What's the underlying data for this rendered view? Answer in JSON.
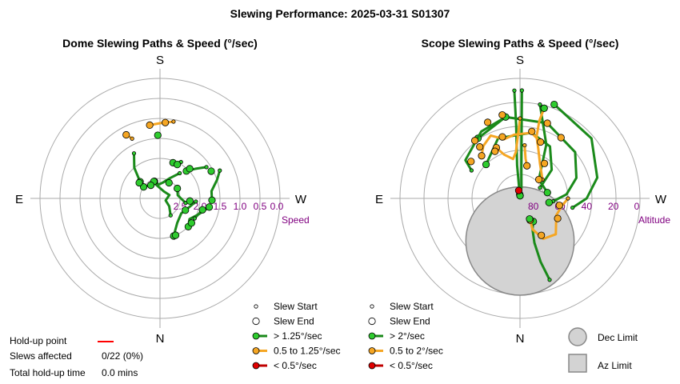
{
  "page": {
    "title": "Slewing Performance: 2025-03-31 S01307"
  },
  "compass": {
    "south": "S",
    "north": "N",
    "east": "E",
    "west": "W"
  },
  "colors": {
    "fast": "#2ecc2e",
    "fast_line": "#1a8a1a",
    "medium": "#f5a623",
    "medium_line": "#f5a623",
    "slow": "#e00000",
    "slow_line": "#c00000",
    "ring": "#aaaaaa",
    "limit_fill": "#d3d3d3",
    "limit_stroke": "#888888",
    "tick_label": "#800080",
    "holdup": "#ff0000"
  },
  "holdup": {
    "point_label": "Hold-up point",
    "slews_label": "Slews affected",
    "slews_value": "0/22 (0%)",
    "time_label": "Total hold-up time",
    "time_value": "0.0 mins"
  },
  "chart_data": [
    {
      "type": "scatter",
      "projection": "polar",
      "title": "Dome Slewing Paths & Speed (°/sec)",
      "radial_label": "Speed",
      "radial_ticks": [
        "2.5",
        "2.0",
        "1.5",
        "1.0",
        "0.5",
        "0.0"
      ],
      "radial_axis": {
        "center_value": 3.0,
        "edge_value": 0.0
      },
      "legend": [
        {
          "kind": "start",
          "label": "Slew Start"
        },
        {
          "kind": "end",
          "label": "Slew End"
        },
        {
          "kind": "fast",
          "label": "> 1.25°/sec"
        },
        {
          "kind": "medium",
          "label": "0.5 to 1.25°/sec"
        },
        {
          "kind": "slow",
          "label": "< 0.5°/sec"
        }
      ],
      "paths": [
        {
          "speed": "fast",
          "points": [
            [
              -56,
              1.6
            ],
            [
              -50,
              1.85
            ],
            [
              -44,
              2.05
            ]
          ]
        },
        {
          "speed": "fast",
          "points": [
            [
              -38,
              2.2
            ],
            [
              -25,
              2.45
            ],
            [
              -10,
              2.6
            ],
            [
              5,
              2.65
            ],
            [
              18,
              2.55
            ]
          ]
        },
        {
          "speed": "fast",
          "points": [
            [
              -30,
              1.95
            ],
            [
              -20,
              2.05
            ]
          ]
        },
        {
          "speed": "fast",
          "points": [
            [
              -65,
              1.35
            ],
            [
              -72,
              1.5
            ],
            [
              -82,
              1.7
            ],
            [
              -92,
              1.7
            ]
          ]
        },
        {
          "speed": "fast",
          "points": [
            [
              -100,
              1.75
            ],
            [
              -112,
              1.95
            ],
            [
              -125,
              2.1
            ],
            [
              -135,
              2.0
            ]
          ]
        },
        {
          "speed": "fast",
          "points": [
            [
              -95,
              2.1
            ],
            [
              -108,
              2.25
            ],
            [
              -125,
              2.35
            ],
            [
              -145,
              2.25
            ],
            [
              -160,
              2.0
            ]
          ]
        },
        {
          "speed": "fast",
          "points": [
            [
              30,
              1.7
            ],
            [
              40,
              2.0
            ],
            [
              50,
              2.35
            ]
          ]
        },
        {
          "speed": "fast",
          "points": [
            [
              -148,
              2.5
            ],
            [
              -130,
              2.7
            ],
            [
              -110,
              2.85
            ],
            [
              -70,
              2.75
            ],
            [
              -30,
              2.8
            ],
            [
              20,
              2.6
            ],
            [
              55,
              2.5
            ]
          ]
        },
        {
          "speed": "fast",
          "points": [
            [
              -100,
              2.35
            ],
            [
              -80,
              2.55
            ],
            [
              -60,
              2.5
            ]
          ]
        },
        {
          "speed": "fast",
          "points": [
            [
              -120,
              2.0
            ],
            [
              -105,
              1.9
            ]
          ]
        },
        {
          "speed": "medium",
          "points": [
            [
              -10,
              1.05
            ],
            [
              0,
              1.12
            ],
            [
              8,
              1.15
            ]
          ]
        },
        {
          "speed": "medium",
          "points": [
            [
              25,
              1.35
            ],
            [
              28,
              1.2
            ]
          ]
        }
      ],
      "points": [
        {
          "theta": -4,
          "r": 1.1,
          "speed": "medium"
        },
        {
          "theta": 2,
          "r": 1.42,
          "speed": "fast"
        },
        {
          "theta": -45,
          "r": 1.95,
          "speed": "fast"
        },
        {
          "theta": -27,
          "r": 2.05,
          "speed": "fast"
        },
        {
          "theta": -62,
          "r": 1.55,
          "speed": "fast"
        },
        {
          "theta": -100,
          "r": 1.75,
          "speed": "fast"
        },
        {
          "theta": -128,
          "r": 2.0,
          "speed": "fast"
        },
        {
          "theta": -157,
          "r": 2.0,
          "speed": "fast"
        },
        {
          "theta": -30,
          "r": 2.55,
          "speed": "fast"
        },
        {
          "theta": 20,
          "r": 2.55,
          "speed": "fast"
        },
        {
          "theta": 35,
          "r": 2.6,
          "speed": "fast"
        },
        {
          "theta": 53,
          "r": 2.35,
          "speed": "fast"
        },
        {
          "theta": -95,
          "r": 2.25,
          "speed": "fast"
        },
        {
          "theta": -115,
          "r": 2.3,
          "speed": "fast"
        }
      ]
    },
    {
      "type": "scatter",
      "projection": "polar",
      "title": "Scope Slewing Paths & Speed (°/sec)",
      "radial_label": "Altitude",
      "radial_ticks": [
        "80",
        "60",
        "40",
        "20",
        "0"
      ],
      "radial_axis": {
        "center_value": 90,
        "edge_value": 0
      },
      "legend": [
        {
          "kind": "start",
          "label": "Slew Start"
        },
        {
          "kind": "end",
          "label": "Slew End"
        },
        {
          "kind": "fast",
          "label": "> 2°/sec"
        },
        {
          "kind": "medium",
          "label": "0.5 to 2°/sec"
        },
        {
          "kind": "slow",
          "label": "< 0.5°/sec"
        },
        {
          "kind": "dec_limit",
          "label": "Dec Limit"
        },
        {
          "kind": "az_limit",
          "label": "Az Limit"
        }
      ],
      "paths": [
        {
          "speed": "fast",
          "points": [
            [
              -1,
              9
            ],
            [
              -3,
              70
            ],
            [
              -8,
              82
            ],
            [
              -3,
              84
            ],
            [
              -1,
              88
            ]
          ]
        },
        {
          "speed": "fast",
          "points": [
            [
              3,
              9
            ],
            [
              3,
              35
            ],
            [
              5,
              65
            ],
            [
              4,
              87
            ]
          ]
        },
        {
          "speed": "fast",
          "points": [
            [
              -12,
              18
            ],
            [
              -26,
              45
            ],
            [
              -45,
              70
            ],
            [
              -78,
              69
            ]
          ]
        },
        {
          "speed": "fast",
          "points": [
            [
              -62,
              73
            ],
            [
              -48,
              58
            ],
            [
              -30,
              45
            ],
            [
              -10,
              40
            ],
            [
              20,
              42
            ],
            [
              45,
              54
            ]
          ]
        },
        {
          "speed": "fast",
          "points": [
            [
              -95,
              65
            ],
            [
              -85,
              55
            ],
            [
              -70,
              45
            ],
            [
              -50,
              36
            ],
            [
              -20,
              30
            ],
            [
              10,
              28
            ],
            [
              35,
              35
            ]
          ]
        },
        {
          "speed": "fast",
          "points": [
            [
              -100,
              50
            ],
            [
              -90,
              40
            ],
            [
              -75,
              30
            ],
            [
              -50,
              20
            ],
            [
              -20,
              15
            ]
          ]
        },
        {
          "speed": "fast",
          "points": [
            [
              -160,
              25
            ],
            [
              -162,
              40
            ],
            [
              -162,
              55
            ],
            [
              -158,
              65
            ],
            [
              -150,
              70
            ]
          ]
        },
        {
          "speed": "fast",
          "points": [
            [
              60,
              48
            ],
            [
              55,
              40
            ],
            [
              30,
              32
            ],
            [
              10,
              28
            ]
          ]
        },
        {
          "speed": "medium",
          "points": [
            [
              -50,
              68
            ],
            [
              -30,
              60
            ],
            [
              -20,
              50
            ],
            [
              -15,
              42
            ],
            [
              -14,
              30
            ],
            [
              -15,
              20
            ]
          ]
        },
        {
          "speed": "medium",
          "points": [
            [
              -20,
              45
            ],
            [
              -10,
              40
            ],
            [
              5,
              42
            ],
            [
              15,
              44
            ],
            [
              25,
              38
            ],
            [
              35,
              42
            ],
            [
              42,
              47
            ]
          ]
        },
        {
          "speed": "medium",
          "points": [
            [
              -90,
              54
            ],
            [
              -100,
              58
            ],
            [
              -115,
              60
            ],
            [
              -135,
              52
            ],
            [
              -150,
              55
            ],
            [
              -158,
              65
            ],
            [
              -155,
              72
            ]
          ]
        },
        {
          "speed": "medium",
          "points": [
            [
              0,
              30
            ],
            [
              5,
              55
            ],
            [
              10,
              60
            ],
            [
              20,
              55
            ],
            [
              25,
              48
            ]
          ]
        },
        {
          "speed": "medium",
          "points": [
            [
              -5,
              50
            ],
            [
              -8,
              60
            ],
            [
              -12,
              65
            ]
          ]
        }
      ],
      "points": [
        {
          "theta": -1,
          "r": 88,
          "speed": "fast"
        },
        {
          "theta": 9,
          "r": 84,
          "speed": "slow"
        },
        {
          "theta": -45,
          "r": 70,
          "speed": "medium"
        },
        {
          "theta": -98,
          "r": 68,
          "speed": "fast"
        },
        {
          "theta": -100,
          "r": 60,
          "speed": "medium"
        },
        {
          "theta": -118,
          "r": 58,
          "speed": "medium"
        },
        {
          "theta": -150,
          "r": 58,
          "speed": "medium"
        },
        {
          "theta": -155,
          "r": 73,
          "speed": "fast"
        },
        {
          "theta": -20,
          "r": 45,
          "speed": "medium"
        },
        {
          "theta": -10,
          "r": 39,
          "speed": "medium"
        },
        {
          "theta": 38,
          "r": 41,
          "speed": "medium"
        },
        {
          "theta": 16,
          "r": 42,
          "speed": "medium"
        },
        {
          "theta": 23,
          "r": 28,
          "speed": "medium"
        },
        {
          "theta": 12,
          "r": 26,
          "speed": "medium"
        },
        {
          "theta": 38,
          "r": 35,
          "speed": "medium"
        },
        {
          "theta": -34,
          "r": 35,
          "speed": "medium"
        },
        {
          "theta": -20,
          "r": 30,
          "speed": "medium"
        },
        {
          "theta": 53,
          "r": 44,
          "speed": "medium"
        },
        {
          "theta": -15,
          "r": 20,
          "speed": "fast"
        },
        {
          "theta": -35,
          "r": 58,
          "speed": "medium"
        },
        {
          "theta": 28,
          "r": 50,
          "speed": "medium"
        }
      ],
      "limits": {
        "dec_limit": {
          "center_theta": 180,
          "center_r": 58,
          "radius": 28
        },
        "az_limit": {
          "theta_from": 168,
          "theta_to": 180,
          "r_from": 0,
          "r_to": 78
        }
      }
    }
  ]
}
